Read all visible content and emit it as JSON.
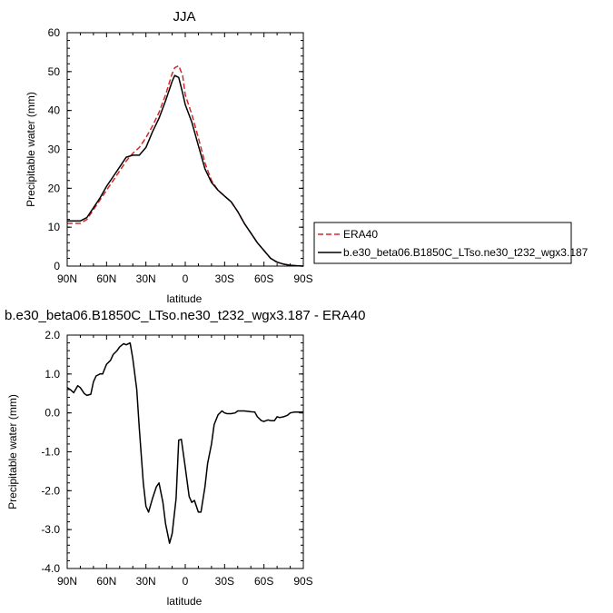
{
  "chart_data": [
    {
      "type": "line",
      "title": "JJA",
      "xlabel": "latitude",
      "ylabel": "Precipitable water (mm)",
      "xlim": [
        90,
        -90
      ],
      "ylim": [
        0,
        60
      ],
      "xticks": [
        90,
        60,
        30,
        0,
        -30,
        -60,
        -90
      ],
      "xtick_labels": [
        "90N",
        "60N",
        "30N",
        "0",
        "30S",
        "60S",
        "90S"
      ],
      "yticks": [
        0,
        10,
        20,
        30,
        40,
        50,
        60
      ],
      "ytick_labels": [
        "0",
        "10",
        "20",
        "30",
        "40",
        "50",
        "60"
      ],
      "legend_position": "right, outside plot",
      "series": [
        {
          "name": "ERA40",
          "color": "#d62728",
          "dash": "dashed",
          "x": [
            90,
            85,
            80,
            75,
            70,
            65,
            60,
            55,
            50,
            45,
            40,
            35,
            30,
            25,
            20,
            15,
            10,
            8,
            5,
            2,
            0,
            -5,
            -10,
            -15,
            -20,
            -25,
            -30,
            -35,
            -40,
            -45,
            -50,
            -55,
            -60,
            -65,
            -70,
            -75,
            -80,
            -85,
            -90
          ],
          "values": [
            11.0,
            11.0,
            11.0,
            12.0,
            14.5,
            17.0,
            19.5,
            22.0,
            24.5,
            27.0,
            29.0,
            30.5,
            33.0,
            36.0,
            39.5,
            44.0,
            49.5,
            51.0,
            51.5,
            49.0,
            44.0,
            39.0,
            33.0,
            26.5,
            22.0,
            19.5,
            18.0,
            16.5,
            14.0,
            11.0,
            8.5,
            6.0,
            4.0,
            2.0,
            1.0,
            0.5,
            0.2,
            0.1,
            0.0
          ]
        },
        {
          "name": "b.e30_beta06.B1850C_LTso.ne30_t232_wgx3.187",
          "color": "#000000",
          "dash": "solid",
          "x": [
            90,
            85,
            80,
            75,
            70,
            65,
            60,
            55,
            50,
            45,
            40,
            35,
            30,
            25,
            20,
            15,
            10,
            8,
            5,
            2,
            0,
            -5,
            -10,
            -15,
            -20,
            -25,
            -30,
            -35,
            -40,
            -45,
            -50,
            -55,
            -60,
            -65,
            -70,
            -75,
            -80,
            -85,
            -90
          ],
          "values": [
            11.6,
            11.6,
            11.6,
            12.5,
            15.0,
            17.5,
            20.5,
            23.0,
            25.5,
            28.0,
            28.5,
            28.5,
            30.5,
            34.5,
            38.0,
            42.5,
            47.5,
            49.0,
            48.5,
            44.5,
            41.5,
            37.0,
            31.0,
            25.0,
            21.5,
            19.5,
            18.0,
            16.5,
            14.0,
            11.0,
            8.5,
            6.0,
            4.0,
            2.0,
            1.0,
            0.5,
            0.2,
            0.1,
            0.0
          ]
        }
      ]
    },
    {
      "type": "line",
      "title": "b.e30_beta06.B1850C_LTso.ne30_t232_wgx3.187 - ERA40",
      "xlabel": "latitude",
      "ylabel": "Precipitable water (mm)",
      "xlim": [
        90,
        -90
      ],
      "ylim": [
        -4.0,
        2.0
      ],
      "xticks": [
        90,
        60,
        30,
        0,
        -30,
        -60,
        -90
      ],
      "xtick_labels": [
        "90N",
        "60N",
        "30N",
        "0",
        "30S",
        "60S",
        "90S"
      ],
      "yticks": [
        2.0,
        1.0,
        0.0,
        -1.0,
        -2.0,
        -3.0,
        -4.0
      ],
      "ytick_labels": [
        "2.0",
        "1.0",
        "0.0",
        "-1.0",
        "-2.0",
        "-3.0",
        "-4.0"
      ],
      "series": [
        {
          "name": "",
          "color": "#000000",
          "dash": "solid",
          "x": [
            90,
            87,
            85,
            82,
            80,
            77,
            75,
            72,
            70,
            68,
            65,
            63,
            60,
            57,
            55,
            52,
            50,
            47,
            45,
            42,
            40,
            37,
            35,
            32,
            30,
            28,
            25,
            22,
            20,
            17,
            15,
            12,
            10,
            7,
            5,
            3,
            0,
            -3,
            -5,
            -7,
            -10,
            -12,
            -15,
            -17,
            -20,
            -22,
            -25,
            -28,
            -30,
            -32,
            -35,
            -38,
            -40,
            -42,
            -45,
            -48,
            -50,
            -53,
            -55,
            -58,
            -60,
            -63,
            -65,
            -68,
            -70,
            -72,
            -75,
            -78,
            -80,
            -83,
            -85,
            -88,
            -90
          ],
          "values": [
            0.65,
            0.58,
            0.52,
            0.7,
            0.65,
            0.5,
            0.45,
            0.48,
            0.8,
            0.95,
            1.0,
            1.0,
            1.25,
            1.35,
            1.5,
            1.6,
            1.7,
            1.78,
            1.75,
            1.8,
            1.4,
            0.6,
            -0.4,
            -1.8,
            -2.4,
            -2.55,
            -2.2,
            -1.9,
            -1.8,
            -2.3,
            -2.85,
            -3.35,
            -3.1,
            -2.2,
            -0.7,
            -0.68,
            -1.4,
            -2.15,
            -2.3,
            -2.25,
            -2.55,
            -2.55,
            -1.9,
            -1.3,
            -0.8,
            -0.3,
            -0.05,
            0.05,
            0.0,
            -0.02,
            -0.02,
            0.0,
            0.05,
            0.05,
            0.05,
            0.04,
            0.03,
            0.02,
            -0.1,
            -0.2,
            -0.22,
            -0.18,
            -0.2,
            -0.2,
            -0.1,
            -0.12,
            -0.1,
            -0.06,
            0.0,
            0.02,
            0.02,
            0.02,
            0.02
          ]
        }
      ]
    }
  ]
}
